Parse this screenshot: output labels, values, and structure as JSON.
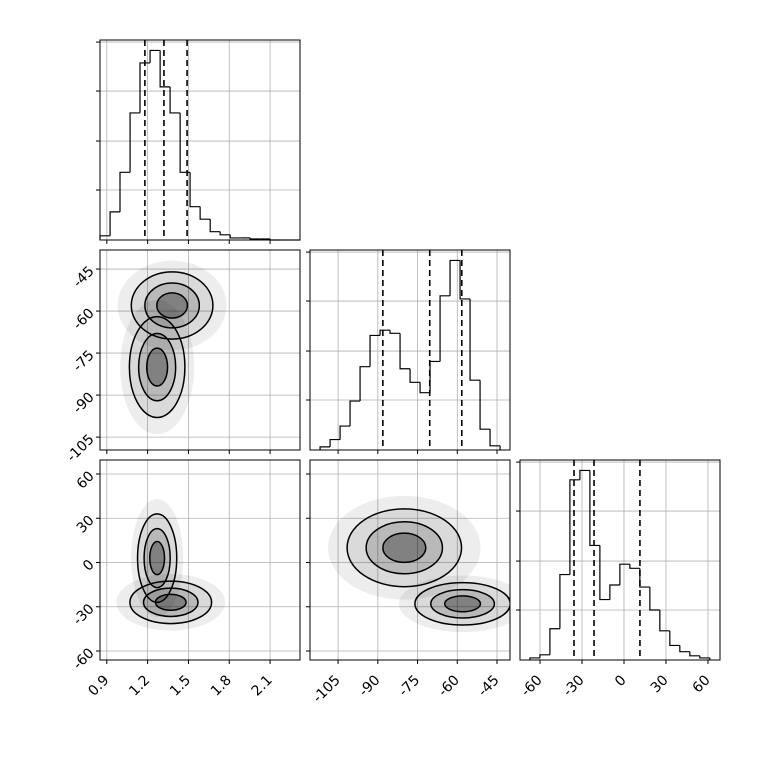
{
  "chart_data": {
    "type": "corner",
    "params": [
      {
        "xlim": [
          0.85,
          2.32
        ],
        "xticks": [
          0.9,
          1.2,
          1.5,
          1.8,
          2.1
        ]
      },
      {
        "xlim": [
          -115.6,
          -40.1
        ],
        "ylim": [
          -109.6,
          -38.2
        ],
        "xticks": [
          -105,
          -90,
          -75,
          -60,
          -45
        ],
        "yticks": [
          -105,
          -90,
          -75,
          -60,
          -45
        ]
      },
      {
        "xlim": [
          -74.3,
          68.6
        ],
        "ylim": [
          -66.1,
          69.5
        ],
        "xticks": [
          -60,
          -30,
          0,
          30,
          60
        ],
        "yticks": [
          -60,
          -30,
          0,
          30,
          60
        ]
      }
    ],
    "histograms": [
      {
        "param": 0,
        "ylim": [
          0,
          192
        ],
        "yticks": [
          48,
          95,
          143,
          190
        ],
        "bins": [
          0.85,
          0.924,
          0.997,
          1.071,
          1.144,
          1.218,
          1.292,
          1.365,
          1.439,
          1.512,
          1.586,
          1.66,
          1.733,
          1.807,
          1.88,
          1.954,
          2.028,
          2.101,
          2.175,
          2.248,
          2.322
        ],
        "values": [
          4,
          27,
          65,
          122,
          170,
          182,
          147,
          122,
          65,
          32,
          20,
          8,
          5,
          2,
          2,
          1,
          1,
          0,
          0,
          0
        ],
        "quantiles": [
          1.18,
          1.32,
          1.49
        ]
      },
      {
        "param": 1,
        "ylim": [
          0,
          192
        ],
        "yticks": [
          48,
          95,
          143,
          190
        ],
        "bins": [
          -111.8,
          -108.03,
          -104.25,
          -100.48,
          -96.7,
          -92.93,
          -89.15,
          -85.38,
          -81.6,
          -77.83,
          -74.05,
          -70.28,
          -66.5,
          -62.73,
          -58.95,
          -55.18,
          -51.4,
          -47.63,
          -43.85
        ],
        "values": [
          3,
          10,
          23,
          47,
          80,
          110,
          115,
          112,
          78,
          65,
          55,
          85,
          148,
          182,
          145,
          67,
          20,
          4
        ],
        "quantiles": [
          -88.1,
          -70.4,
          -58.3
        ]
      },
      {
        "param": 2,
        "ylim": [
          0,
          192
        ],
        "yticks": [
          48,
          95,
          143,
          190
        ],
        "bins": [
          -67.2,
          -60.06,
          -52.92,
          -45.78,
          -38.64,
          -31.5,
          -24.36,
          -17.22,
          -10.08,
          -2.94,
          4.2,
          11.34,
          18.48,
          25.62,
          32.76,
          39.9,
          47.04,
          54.18,
          61.32
        ],
        "values": [
          2,
          5,
          30,
          82,
          173,
          182,
          110,
          58,
          72,
          92,
          88,
          70,
          48,
          28,
          14,
          8,
          4,
          2
        ],
        "quantiles": [
          -35.7,
          -21.4,
          11.4
        ]
      }
    ],
    "pairs": [
      {
        "x_param": 0,
        "y_param": 1,
        "blobs": [
          {
            "x": 1.38,
            "y": -58,
            "rx": 0.25,
            "ry": 10
          },
          {
            "x": 1.27,
            "y": -80,
            "rx": 0.17,
            "ry": 15
          }
        ]
      },
      {
        "x_param": 0,
        "y_param": 2,
        "blobs": [
          {
            "x": 1.27,
            "y": 3,
            "rx": 0.12,
            "ry": 25
          },
          {
            "x": 1.37,
            "y": -27,
            "rx": 0.25,
            "ry": 12
          }
        ]
      },
      {
        "x_param": 1,
        "y_param": 2,
        "blobs": [
          {
            "x": -80,
            "y": 10,
            "rx": 18,
            "ry": 22
          },
          {
            "x": -58,
            "y": -28,
            "rx": 15,
            "ry": 12
          }
        ]
      }
    ]
  }
}
